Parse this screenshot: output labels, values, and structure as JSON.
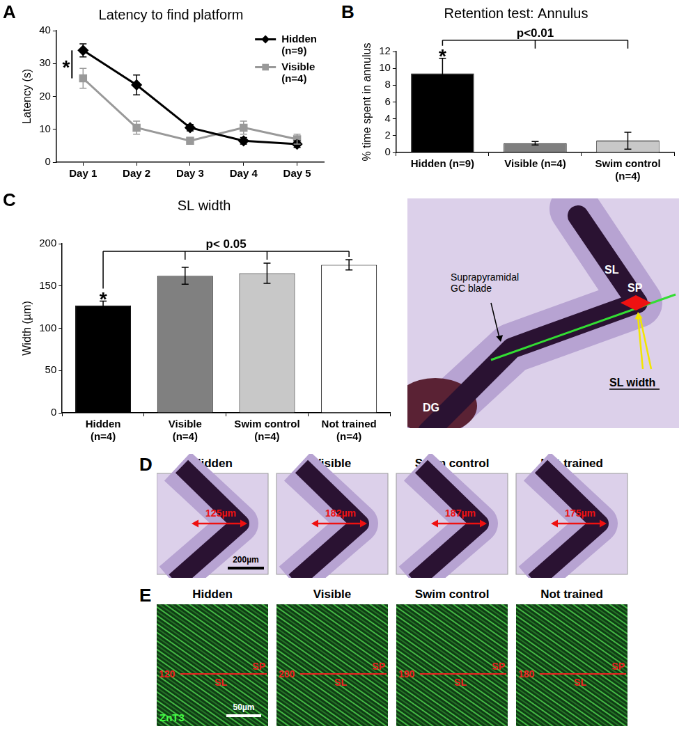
{
  "chart_data": [
    {
      "panel": "A",
      "type": "line",
      "title": "Latency to find platform",
      "ylabel": "Latency (s)",
      "categories": [
        "Day 1",
        "Day 2",
        "Day 3",
        "Day 4",
        "Day 5"
      ],
      "series": [
        {
          "name": "Hidden\n(n=9)",
          "color": "#000000",
          "marker": "diamond",
          "values": [
            34,
            23.5,
            10.5,
            6.5,
            5.5
          ],
          "errors": [
            2,
            3,
            1,
            1,
            1
          ]
        },
        {
          "name": "Visible\n(n=4)",
          "color": "#999999",
          "marker": "square",
          "values": [
            25.5,
            10.5,
            6.5,
            10.5,
            7
          ],
          "errors": [
            3,
            2,
            1,
            2,
            1.5
          ]
        }
      ],
      "ylim": [
        0,
        40
      ],
      "yticks": [
        0,
        10,
        20,
        30,
        40
      ],
      "grid": false,
      "legend": "upper right",
      "annotations": [
        {
          "text": "*",
          "at": "Day 1"
        }
      ]
    },
    {
      "panel": "B",
      "type": "bar",
      "title": "Retention test: Annulus",
      "ylabel": "% time spent in annulus",
      "categories": [
        "Hidden (n=9)",
        "Visible (n=4)",
        "Swim control\n(n=4)"
      ],
      "values": [
        9.4,
        1.1,
        1.4
      ],
      "errors": [
        1.8,
        0.2,
        1.0
      ],
      "colors": [
        "#000000",
        "#7f7f7f",
        "#c8c8c8"
      ],
      "ylim": [
        0,
        12
      ],
      "yticks": [
        0,
        2,
        4,
        6,
        8,
        10,
        12
      ],
      "grid": false,
      "annotations": [
        {
          "text": "*",
          "at": "Hidden (n=9)"
        },
        {
          "text": "p<0.01",
          "bracket": [
            "Hidden (n=9)",
            "Visible (n=4)",
            "Swim control\n(n=4)"
          ]
        }
      ]
    },
    {
      "panel": "C",
      "type": "bar",
      "title": "SL width",
      "ylabel": "Width (µm)",
      "categories": [
        "Hidden\n(n=4)",
        "Visible\n(n=4)",
        "Swim control\n(n=4)",
        "Not trained\n(n=4)"
      ],
      "values": [
        127,
        162,
        165,
        175
      ],
      "errors": [
        5,
        10,
        12,
        6
      ],
      "colors": [
        "#000000",
        "#808080",
        "#c8c8c8",
        "#ffffff"
      ],
      "ylim": [
        0,
        200
      ],
      "yticks": [
        0,
        50,
        100,
        150,
        200
      ],
      "grid": false,
      "annotations": [
        {
          "text": "*",
          "at": "Hidden\n(n=4)"
        },
        {
          "text": "p< 0.05",
          "bracket": [
            "Hidden\n(n=4)",
            "Visible\n(n=4)",
            "Swim control\n(n=4)",
            "Not trained\n(n=4)"
          ]
        }
      ]
    }
  ],
  "overview": {
    "gc_blade": "Suprapyramidal\nGC blade",
    "sl": "SL",
    "sp": "SP",
    "dg": "DG",
    "measure": "SL width"
  },
  "panel_d": {
    "panel": "D",
    "scale_bar": "200µm",
    "images": [
      {
        "title": "Hidden",
        "measure": "125µm"
      },
      {
        "title": "Visible",
        "measure": "182µm"
      },
      {
        "title": "Swim control",
        "measure": "187µm"
      },
      {
        "title": "Not trained",
        "measure": "175µm"
      }
    ]
  },
  "panel_e": {
    "panel": "E",
    "stain": "ZnT3",
    "scale_bar": "50µm",
    "region_labels": [
      "SL",
      "SP"
    ],
    "images": [
      {
        "title": "Hidden",
        "measure": 120
      },
      {
        "title": "Visible",
        "measure": 200
      },
      {
        "title": "Swim control",
        "measure": 190
      },
      {
        "title": "Not trained",
        "measure": 180
      }
    ]
  }
}
